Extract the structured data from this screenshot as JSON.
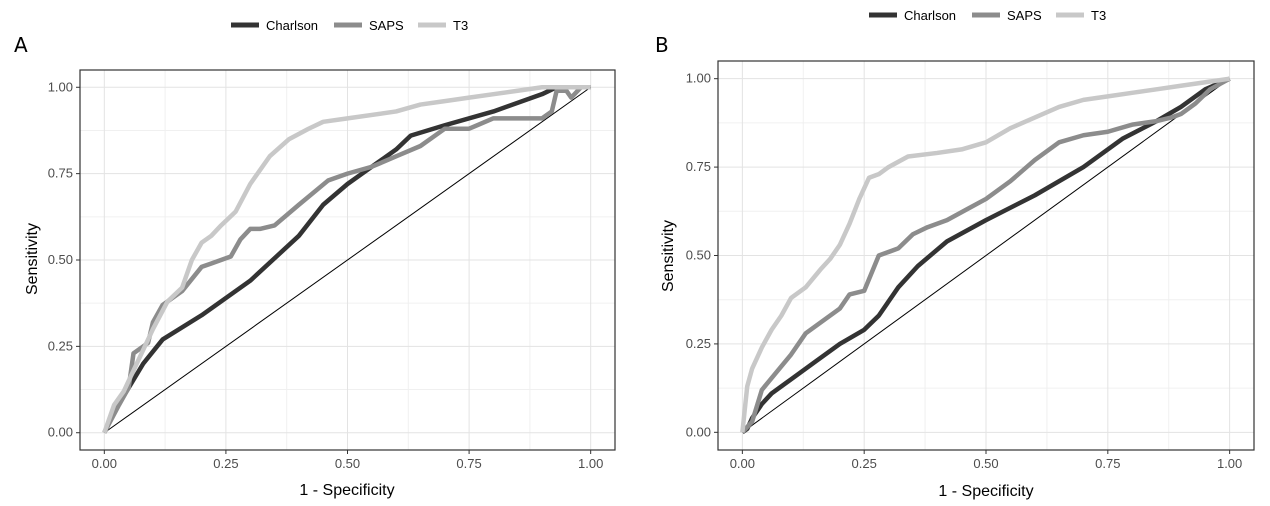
{
  "chart_data": [
    {
      "type": "line",
      "panel_label": "A",
      "xlabel": "1 - Specificity",
      "ylabel": "Sensitivity",
      "xlim": [
        -0.05,
        1.05
      ],
      "ylim": [
        -0.05,
        1.05
      ],
      "xticks": [
        "0.00",
        "0.25",
        "0.50",
        "0.75",
        "1.00"
      ],
      "yticks": [
        "0.00",
        "0.25",
        "0.50",
        "0.75",
        "1.00"
      ],
      "grid": true,
      "legend_position": "top",
      "reference_line": {
        "x": [
          0,
          1
        ],
        "y": [
          0,
          1
        ]
      },
      "series": [
        {
          "name": "Charlson",
          "color": "#333333",
          "x": [
            0,
            0.02,
            0.05,
            0.08,
            0.12,
            0.2,
            0.3,
            0.4,
            0.45,
            0.5,
            0.55,
            0.6,
            0.63,
            0.7,
            0.8,
            0.9,
            0.93,
            1
          ],
          "y": [
            0,
            0.06,
            0.13,
            0.2,
            0.27,
            0.34,
            0.44,
            0.57,
            0.66,
            0.72,
            0.77,
            0.82,
            0.86,
            0.89,
            0.93,
            0.98,
            1,
            1
          ]
        },
        {
          "name": "SAPS",
          "color": "#8c8c8c",
          "x": [
            0,
            0.03,
            0.05,
            0.06,
            0.09,
            0.1,
            0.12,
            0.16,
            0.2,
            0.22,
            0.26,
            0.28,
            0.3,
            0.32,
            0.35,
            0.4,
            0.46,
            0.5,
            0.55,
            0.6,
            0.65,
            0.7,
            0.75,
            0.8,
            0.85,
            0.9,
            0.92,
            0.93,
            0.95,
            0.96,
            0.98
          ],
          "y": [
            0,
            0.08,
            0.13,
            0.23,
            0.26,
            0.32,
            0.37,
            0.41,
            0.48,
            0.49,
            0.51,
            0.56,
            0.59,
            0.59,
            0.6,
            0.66,
            0.73,
            0.75,
            0.77,
            0.8,
            0.83,
            0.88,
            0.88,
            0.91,
            0.91,
            0.91,
            0.93,
            0.99,
            0.99,
            0.97,
            1
          ]
        },
        {
          "name": "T3",
          "color": "#c8c8c8",
          "x": [
            0,
            0.02,
            0.04,
            0.06,
            0.08,
            0.1,
            0.13,
            0.16,
            0.18,
            0.2,
            0.22,
            0.24,
            0.27,
            0.3,
            0.34,
            0.38,
            0.42,
            0.45,
            0.5,
            0.6,
            0.65,
            0.7,
            0.75,
            0.8,
            0.85,
            0.9,
            1
          ],
          "y": [
            0,
            0.08,
            0.12,
            0.18,
            0.24,
            0.3,
            0.38,
            0.42,
            0.5,
            0.55,
            0.57,
            0.6,
            0.64,
            0.72,
            0.8,
            0.85,
            0.88,
            0.9,
            0.91,
            0.93,
            0.95,
            0.96,
            0.97,
            0.98,
            0.99,
            1,
            1
          ]
        }
      ]
    },
    {
      "type": "line",
      "panel_label": "B",
      "xlabel": "1 - Specificity",
      "ylabel": "Sensitivity",
      "xlim": [
        -0.05,
        1.05
      ],
      "ylim": [
        -0.05,
        1.05
      ],
      "xticks": [
        "0.00",
        "0.25",
        "0.50",
        "0.75",
        "1.00"
      ],
      "yticks": [
        "0.00",
        "0.25",
        "0.50",
        "0.75",
        "1.00"
      ],
      "grid": true,
      "legend_position": "top",
      "reference_line": {
        "x": [
          0,
          1
        ],
        "y": [
          0,
          1
        ]
      },
      "series": [
        {
          "name": "Charlson",
          "color": "#333333",
          "x": [
            0,
            0.01,
            0.02,
            0.04,
            0.06,
            0.1,
            0.15,
            0.2,
            0.25,
            0.28,
            0.32,
            0.36,
            0.42,
            0.5,
            0.6,
            0.7,
            0.78,
            0.85,
            0.9,
            0.95,
            1
          ],
          "y": [
            0,
            0.01,
            0.04,
            0.08,
            0.11,
            0.15,
            0.2,
            0.25,
            0.29,
            0.33,
            0.41,
            0.47,
            0.54,
            0.6,
            0.67,
            0.75,
            0.83,
            0.88,
            0.92,
            0.97,
            1
          ]
        },
        {
          "name": "SAPS",
          "color": "#8c8c8c",
          "x": [
            0,
            0.02,
            0.04,
            0.07,
            0.1,
            0.13,
            0.16,
            0.2,
            0.22,
            0.25,
            0.28,
            0.32,
            0.35,
            0.38,
            0.42,
            0.46,
            0.5,
            0.55,
            0.6,
            0.65,
            0.7,
            0.75,
            0.8,
            0.85,
            0.88,
            0.9,
            0.93,
            0.96,
            1
          ],
          "y": [
            0,
            0.03,
            0.12,
            0.17,
            0.22,
            0.28,
            0.31,
            0.35,
            0.39,
            0.4,
            0.5,
            0.52,
            0.56,
            0.58,
            0.6,
            0.63,
            0.66,
            0.71,
            0.77,
            0.82,
            0.84,
            0.85,
            0.87,
            0.88,
            0.89,
            0.9,
            0.93,
            0.97,
            1
          ]
        },
        {
          "name": "T3",
          "color": "#c8c8c8",
          "x": [
            0,
            0.01,
            0.02,
            0.04,
            0.06,
            0.08,
            0.1,
            0.13,
            0.16,
            0.18,
            0.2,
            0.22,
            0.24,
            0.26,
            0.28,
            0.3,
            0.34,
            0.4,
            0.45,
            0.5,
            0.55,
            0.6,
            0.65,
            0.7,
            0.75,
            0.8,
            0.85,
            0.9,
            0.95,
            1
          ],
          "y": [
            0,
            0.13,
            0.18,
            0.24,
            0.29,
            0.33,
            0.38,
            0.41,
            0.46,
            0.49,
            0.53,
            0.59,
            0.66,
            0.72,
            0.73,
            0.75,
            0.78,
            0.79,
            0.8,
            0.82,
            0.86,
            0.89,
            0.92,
            0.94,
            0.95,
            0.96,
            0.97,
            0.98,
            0.99,
            1
          ]
        }
      ]
    }
  ]
}
